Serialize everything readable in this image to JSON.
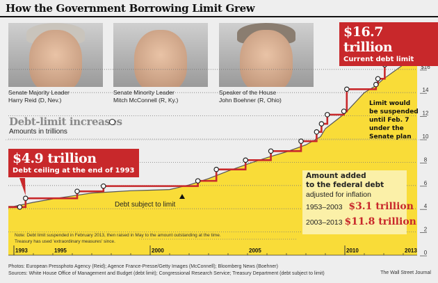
{
  "title": "How the Government Borrowing Limit Grew",
  "photos": [
    {
      "caption_line1": "Senate Majority Leader",
      "caption_line2": "Harry Reid (D, Nev.)"
    },
    {
      "caption_line1": "Senate Minority Leader",
      "caption_line2": "Mitch McConnell (R, Ky.)"
    },
    {
      "caption_line1": "Speaker of the House",
      "caption_line2": "John Boehner (R, Ohio)"
    }
  ],
  "legend": {
    "title": "Debt-limit increases",
    "units": "Amounts in trillions"
  },
  "callouts": {
    "start": {
      "big": "$4.9 trillion",
      "small": "Debt ceiling at the end of 1993"
    },
    "current": {
      "big": "$16.7 trillion",
      "small": "Current debt limit"
    }
  },
  "annotations": {
    "suspend": [
      "Limit would",
      "be suspended",
      "until Feb. 7",
      "under the",
      "Senate plan"
    ],
    "debt_line": "Debt subject to limit"
  },
  "inflation_box": {
    "heading_line1": "Amount added",
    "heading_line2": "to the federal debt",
    "sub": "adjusted for inflation",
    "rows": [
      {
        "period": "1953–2003",
        "value": "$3.1 trillion"
      },
      {
        "period": "2003–2013",
        "value": "$11.8 trillion"
      }
    ]
  },
  "note": [
    "Note: Debt limit suspended in February 2013, then raised in May to the amount outstanding at the time.",
    "Treasury has used 'extraordinary measures' since."
  ],
  "footer": {
    "photos": "Photos: European Pressphoto Agency (Reid); Agence France-Presse/Getty Images (McConnell); Bloomberg News (Boehner)",
    "sources": "Sources: White House Office of Management and Budget (debt limit); Congressional Research Service; Treasury Department (debt subject to limit)",
    "credit": "The Wall Street Journal"
  },
  "colors": {
    "limit_line": "#c8282b",
    "debt_fill": "#f9dc38",
    "debt_line": "#555555",
    "callout": "#c8282b"
  },
  "chart_data": {
    "type": "line",
    "ylabel": "Amounts in trillions",
    "ylim": [
      0,
      17
    ],
    "xlim": [
      1993,
      2013.7
    ],
    "grid": true,
    "y_ticks": [
      "0",
      "2",
      "4",
      "6",
      "8",
      "10",
      "12",
      "14",
      "$16"
    ],
    "y_tick_values": [
      0,
      2,
      4,
      6,
      8,
      10,
      12,
      14,
      16
    ],
    "x_tick_labels": [
      "1993",
      "1995",
      "2000",
      "2005",
      "2010",
      "2013"
    ],
    "x_tick_values": [
      1993,
      1995,
      2000,
      2005,
      2010,
      2013
    ],
    "series": [
      {
        "name": "Debt-limit increases",
        "style": "step",
        "x": [
          1993.3,
          1993.6,
          1996.25,
          1997.6,
          2002.45,
          2003.4,
          2004.9,
          2006.2,
          2007.75,
          2008.55,
          2008.8,
          2009.1,
          2009.95,
          2010.1,
          2011.6,
          2011.7,
          2012.05,
          2013.4
        ],
        "y": [
          4.145,
          4.9,
          5.5,
          5.95,
          6.4,
          7.384,
          8.184,
          8.965,
          9.815,
          10.615,
          11.315,
          12.104,
          12.394,
          14.294,
          14.694,
          15.194,
          16.394,
          16.699
        ]
      },
      {
        "name": "Debt subject to limit",
        "style": "area",
        "x": [
          1993,
          1994,
          1995,
          1996,
          1997,
          1998,
          1999,
          2000,
          2001,
          2002,
          2003,
          2004,
          2005,
          2006,
          2007,
          2008,
          2008.75,
          2009,
          2010,
          2011,
          2011.6,
          2012,
          2013,
          2013.4,
          2013.7
        ],
        "y": [
          4.2,
          4.55,
          4.85,
          5.1,
          5.35,
          5.45,
          5.55,
          5.6,
          5.65,
          6.05,
          6.6,
          7.25,
          7.85,
          8.4,
          8.9,
          9.5,
          10.2,
          10.9,
          12.2,
          14.0,
          14.6,
          15.2,
          16.4,
          16.7,
          16.7
        ]
      }
    ]
  }
}
